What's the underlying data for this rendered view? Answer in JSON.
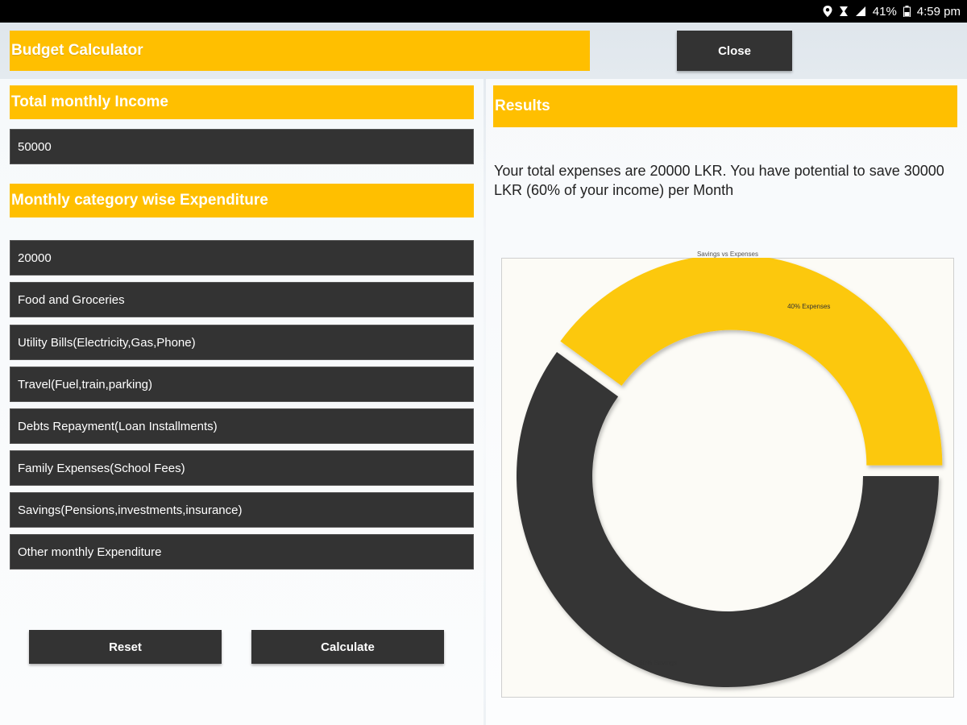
{
  "status_bar": {
    "battery": "41%",
    "time": "4:59 pm",
    "icons": [
      "location-icon",
      "alarm-icon",
      "signal-icon",
      "battery-icon"
    ]
  },
  "header": {
    "title": "Budget Calculator",
    "close_label": "Close"
  },
  "income": {
    "heading": "Total monthly Income",
    "value": "50000"
  },
  "expenditure": {
    "heading": "Monthly category wise Expenditure",
    "fields": [
      {
        "name": "expense-field-total",
        "text": "20000"
      },
      {
        "name": "expense-field-food",
        "text": "Food and Groceries"
      },
      {
        "name": "expense-field-utility",
        "text": "Utility Bills(Electricity,Gas,Phone)"
      },
      {
        "name": "expense-field-travel",
        "text": "Travel(Fuel,train,parking)"
      },
      {
        "name": "expense-field-debts",
        "text": "Debts Repayment(Loan Installments)"
      },
      {
        "name": "expense-field-family",
        "text": "Family Expenses(School Fees)"
      },
      {
        "name": "expense-field-savings",
        "text": "Savings(Pensions,investments,insurance)"
      },
      {
        "name": "expense-field-other",
        "text": "Other monthly Expenditure"
      }
    ]
  },
  "actions": {
    "reset_label": "Reset",
    "calculate_label": "Calculate"
  },
  "results": {
    "heading": "Results",
    "summary": "Your total expenses are 20000 LKR. You have potential to save 30000 LKR (60% of your income) per Month"
  },
  "colors": {
    "accent": "#ffbf00",
    "dark": "#333333",
    "expenses_slice": "#fcc80f",
    "savings_slice": "#363636"
  },
  "chart_data": {
    "type": "pie",
    "title": "Savings vs Expenses",
    "categories": [
      "Expenses",
      "Savings"
    ],
    "values": [
      40,
      60
    ],
    "labels": [
      "40% Expenses",
      "60% Savings"
    ],
    "colors": [
      "#fcc80f",
      "#363636"
    ]
  }
}
